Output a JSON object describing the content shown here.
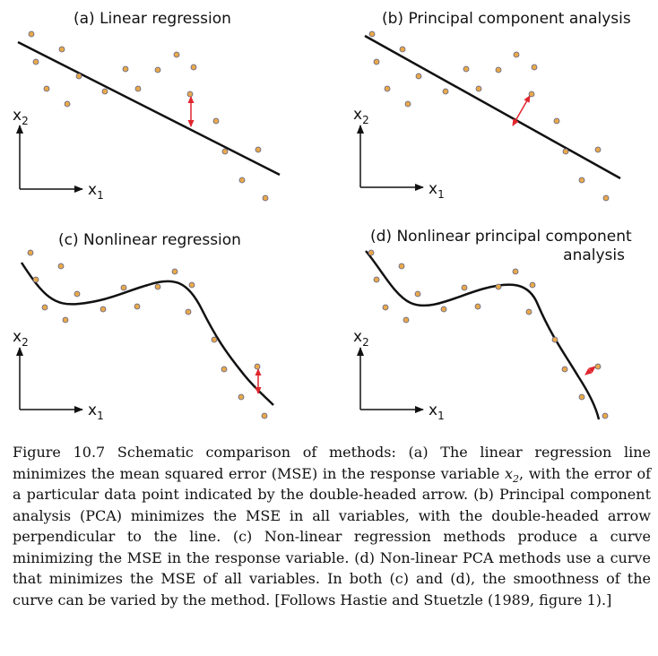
{
  "panels": [
    {
      "id": "a",
      "title": "(a)  Linear regression",
      "title_lines": [
        "(a)  Linear regression"
      ]
    },
    {
      "id": "b",
      "title": "(b)  Principal component analysis",
      "title_lines": [
        "(b)  Principal component analysis"
      ]
    },
    {
      "id": "c",
      "title": "(c)  Nonlinear regression",
      "title_lines": [
        "(c)  Nonlinear regression"
      ]
    },
    {
      "id": "d",
      "title": "(d)  Nonlinear principal component analysis",
      "title_lines": [
        "(d)  Nonlinear principal component",
        "analysis"
      ]
    }
  ],
  "axes": {
    "y_label": "x",
    "y_sub": "2",
    "x_label": "x",
    "x_sub": "1"
  },
  "colors": {
    "point_fill": "#e8a94a",
    "point_stroke": "#5a5f8a",
    "curve": "#111111",
    "error_arrow": "#e0262d"
  },
  "caption": {
    "part1": "Figure 10.7 Schematic comparison of methods: (a) The linear regression line minimizes the mean squared error (MSE) in the response variable ",
    "math_var": "x",
    "math_sub": "2",
    "part2": ", with the error of a particular data point indicated by the double-headed arrow. (b) Principal component analysis (PCA) minimizes the MSE in all variables, with the double-headed arrow perpendicular to the line. (c) Non-linear regression methods produce a curve minimizing the MSE in the response variable. (d) Non-linear PCA methods use a curve that minimizes the MSE of all variables. In both (c) and (d), the smoothness of the curve can be varied by the method. [Follows Hastie and Stuetzle (1989, figure 1).]"
  }
}
